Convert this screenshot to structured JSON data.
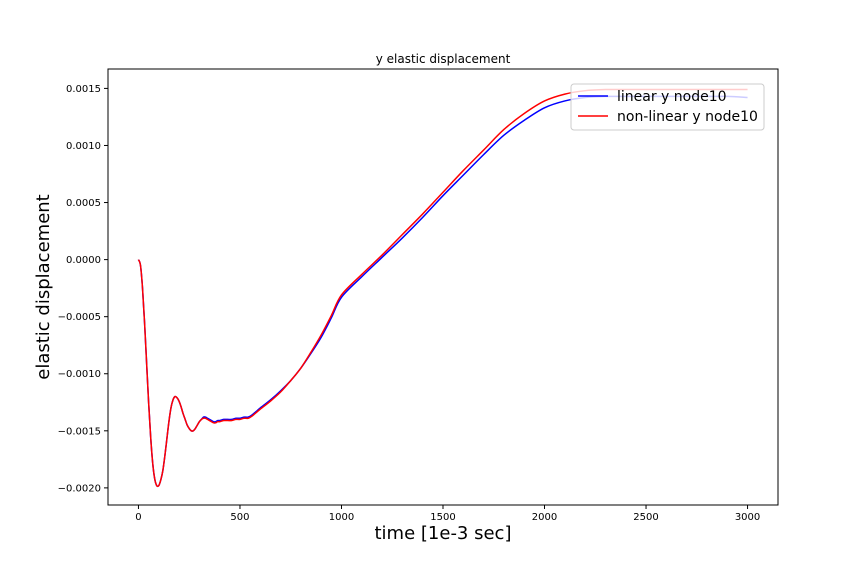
{
  "chart_data": {
    "type": "line",
    "title": "y elastic displacement",
    "xlabel": "time [1e-3 sec]",
    "ylabel": "elastic displacement",
    "xlim": [
      -150,
      3150
    ],
    "ylim": [
      -0.00215,
      0.00167
    ],
    "xticks": [
      0,
      500,
      1000,
      1500,
      2000,
      2500,
      3000
    ],
    "xtick_labels": [
      "0",
      "500",
      "1000",
      "1500",
      "2000",
      "2500",
      "3000"
    ],
    "yticks": [
      -0.002,
      -0.0015,
      -0.001,
      -0.0005,
      0.0,
      0.0005,
      0.001,
      0.0015
    ],
    "ytick_labels": [
      "−0.0020",
      "−0.0015",
      "−0.0010",
      "−0.0005",
      "0.0000",
      "0.0005",
      "0.0010",
      "0.0015"
    ],
    "grid": false,
    "legend_position": "top-right",
    "series": [
      {
        "name": "linear y node10",
        "color": "#0000ff",
        "x": [
          0,
          10,
          20,
          30,
          40,
          50,
          60,
          70,
          80,
          90,
          100,
          110,
          120,
          130,
          140,
          150,
          160,
          170,
          180,
          190,
          200,
          210,
          220,
          230,
          240,
          250,
          260,
          270,
          280,
          290,
          300,
          310,
          320,
          330,
          340,
          350,
          360,
          370,
          380,
          390,
          400,
          420,
          440,
          460,
          480,
          500,
          520,
          540,
          560,
          580,
          600,
          650,
          700,
          750,
          800,
          850,
          900,
          950,
          1000,
          1100,
          1200,
          1300,
          1400,
          1500,
          1600,
          1700,
          1800,
          1900,
          2000,
          2100,
          2200,
          2300,
          2400,
          2500,
          2600,
          2700,
          2800,
          2900,
          3000
        ],
        "y": [
          0.0,
          -5e-05,
          -0.00025,
          -0.00055,
          -0.0009,
          -0.00125,
          -0.00155,
          -0.00178,
          -0.00192,
          -0.00198,
          -0.00198,
          -0.00193,
          -0.00185,
          -0.00172,
          -0.00157,
          -0.00142,
          -0.0013,
          -0.00123,
          -0.0012,
          -0.00121,
          -0.00124,
          -0.00129,
          -0.00135,
          -0.0014,
          -0.00145,
          -0.00148,
          -0.0015,
          -0.0015,
          -0.00148,
          -0.00145,
          -0.00142,
          -0.0014,
          -0.00138,
          -0.00138,
          -0.00139,
          -0.0014,
          -0.00141,
          -0.00142,
          -0.00142,
          -0.00141,
          -0.00141,
          -0.0014,
          -0.0014,
          -0.0014,
          -0.00139,
          -0.00139,
          -0.00138,
          -0.00138,
          -0.00136,
          -0.00133,
          -0.0013,
          -0.00123,
          -0.00115,
          -0.00106,
          -0.00095,
          -0.00082,
          -0.00068,
          -0.00051,
          -0.00033,
          -0.00015,
          2e-05,
          0.00019,
          0.00037,
          0.00056,
          0.00074,
          0.00092,
          0.00109,
          0.00122,
          0.00133,
          0.00139,
          0.00142,
          0.00143,
          0.00143,
          0.00143,
          0.00143,
          0.00143,
          0.00143,
          0.00143,
          0.00142
        ]
      },
      {
        "name": "non-linear y node10",
        "color": "#ff0000",
        "x": [
          0,
          10,
          20,
          30,
          40,
          50,
          60,
          70,
          80,
          90,
          100,
          110,
          120,
          130,
          140,
          150,
          160,
          170,
          180,
          190,
          200,
          210,
          220,
          230,
          240,
          250,
          260,
          270,
          280,
          290,
          300,
          310,
          320,
          330,
          340,
          350,
          360,
          370,
          380,
          390,
          400,
          420,
          440,
          460,
          480,
          500,
          520,
          540,
          560,
          580,
          600,
          650,
          700,
          750,
          800,
          850,
          900,
          950,
          1000,
          1100,
          1200,
          1300,
          1400,
          1500,
          1600,
          1700,
          1800,
          1900,
          2000,
          2100,
          2200,
          2300,
          2400,
          2500,
          2600,
          2700,
          2800,
          2900,
          3000
        ],
        "y": [
          0.0,
          -5e-05,
          -0.00025,
          -0.00055,
          -0.0009,
          -0.00125,
          -0.00155,
          -0.00178,
          -0.00192,
          -0.00198,
          -0.00198,
          -0.00193,
          -0.00185,
          -0.00172,
          -0.00157,
          -0.00142,
          -0.0013,
          -0.00123,
          -0.0012,
          -0.00121,
          -0.00124,
          -0.00129,
          -0.00135,
          -0.0014,
          -0.00145,
          -0.00148,
          -0.0015,
          -0.0015,
          -0.00148,
          -0.00145,
          -0.00142,
          -0.0014,
          -0.00139,
          -0.00139,
          -0.0014,
          -0.00141,
          -0.00142,
          -0.00143,
          -0.00143,
          -0.00142,
          -0.00142,
          -0.00141,
          -0.00141,
          -0.00141,
          -0.0014,
          -0.0014,
          -0.00139,
          -0.00139,
          -0.00137,
          -0.00134,
          -0.00131,
          -0.00124,
          -0.00116,
          -0.00106,
          -0.00095,
          -0.00081,
          -0.00066,
          -0.00049,
          -0.00031,
          -0.00013,
          4e-05,
          0.00022,
          0.0004,
          0.00059,
          0.00078,
          0.00096,
          0.00114,
          0.00128,
          0.00139,
          0.00145,
          0.00148,
          0.00149,
          0.00149,
          0.00149,
          0.00149,
          0.00149,
          0.00149,
          0.00149,
          0.00149
        ]
      }
    ]
  }
}
